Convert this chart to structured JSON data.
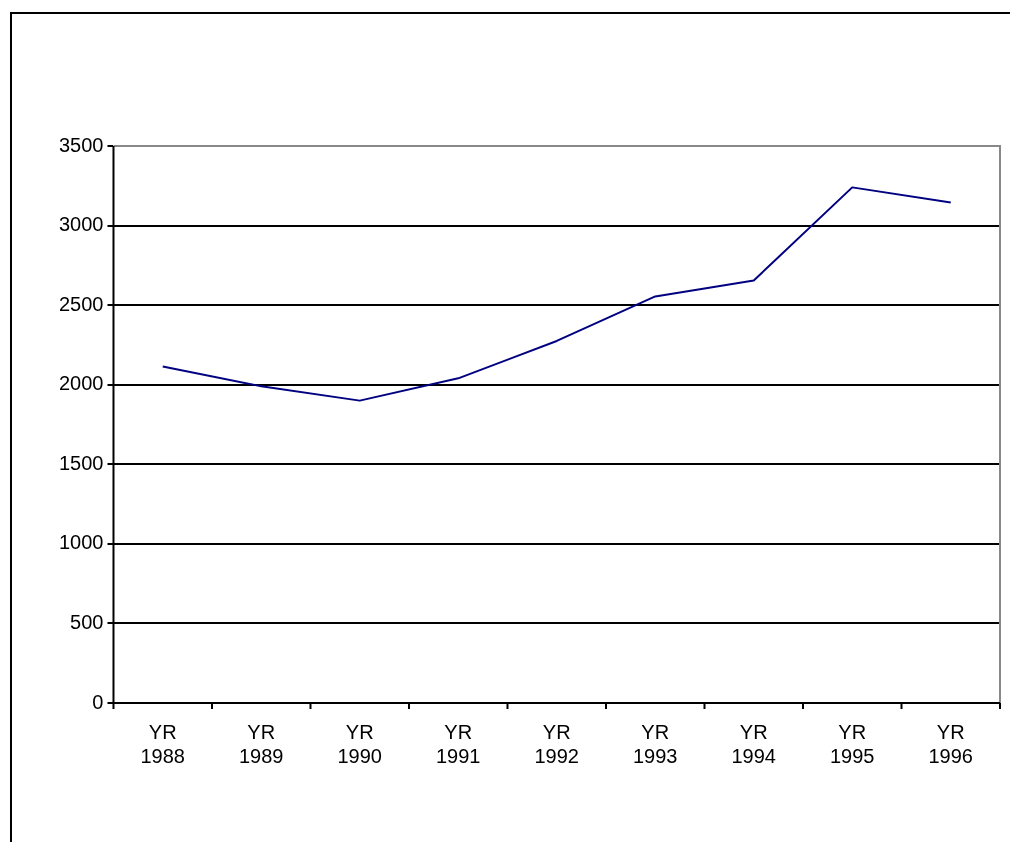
{
  "chart_data": {
    "type": "line",
    "categories": [
      "YR 1988",
      "YR 1989",
      "YR 1990",
      "YR 1991",
      "YR 1992",
      "YR 1993",
      "YR 1994",
      "YR 1995",
      "YR 1996"
    ],
    "series": [
      {
        "color": "#000080",
        "values": [
          2115,
          1990,
          1900,
          2040,
          2275,
          2555,
          2655,
          3240,
          3145
        ]
      }
    ],
    "ylim": [
      0,
      3500
    ],
    "yticks": [
      0,
      500,
      1000,
      1500,
      2000,
      2500,
      3000,
      3500
    ],
    "grid": "y",
    "legend": false,
    "marker": "none",
    "line_style": "solid"
  }
}
